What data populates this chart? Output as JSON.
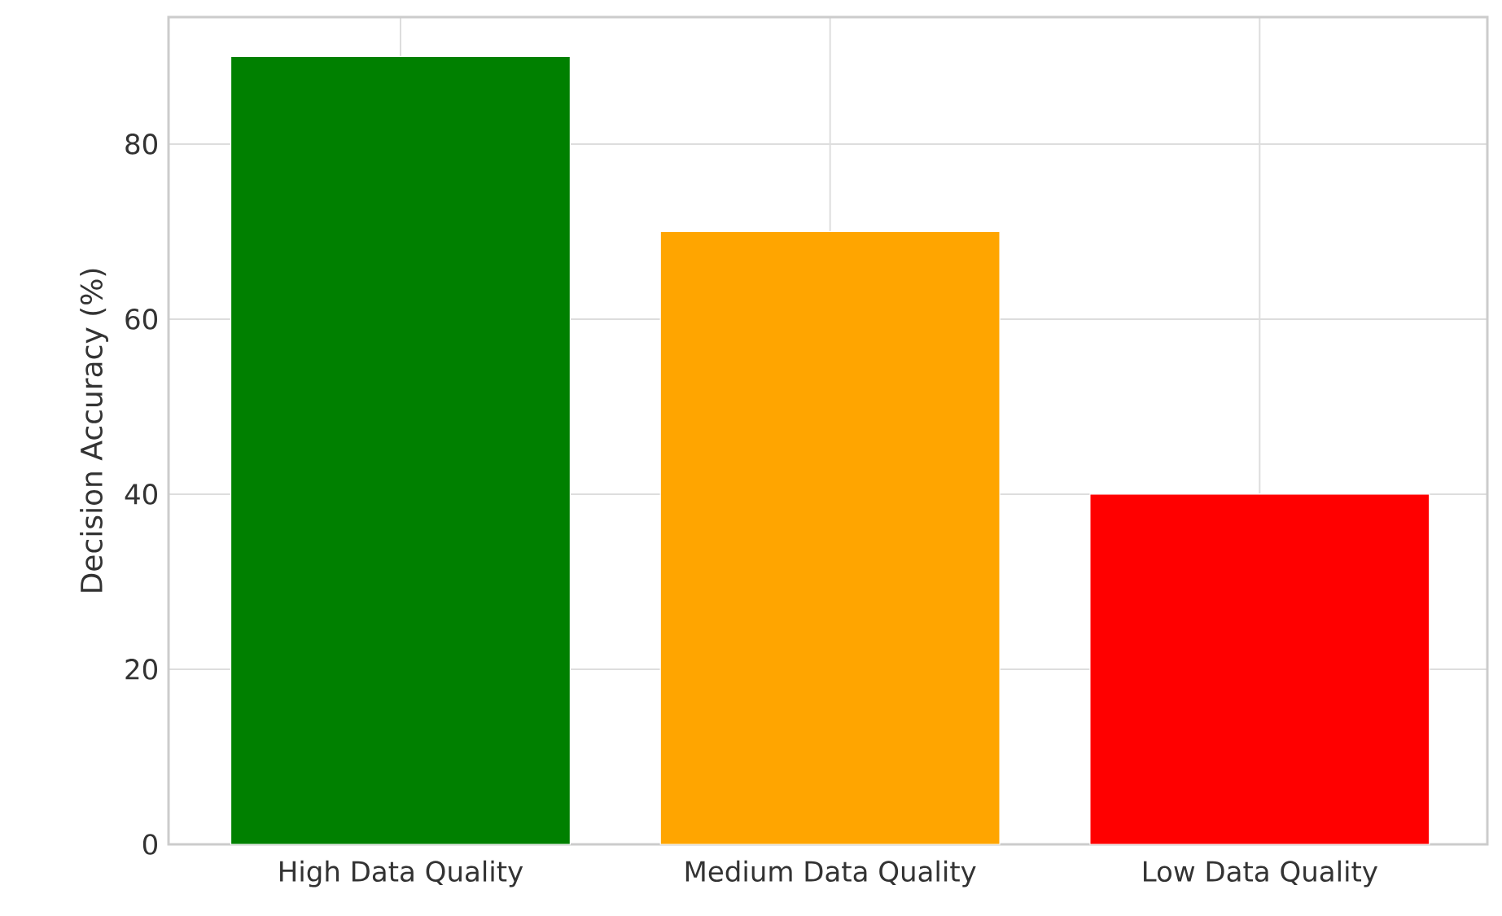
{
  "chart_data": {
    "type": "bar",
    "ylabel": "Decision Accuracy (%)",
    "categories": [
      "High Data Quality",
      "Medium Data Quality",
      "Low Data Quality"
    ],
    "values": [
      90,
      70,
      40
    ],
    "colors": [
      "#008000",
      "#ffa500",
      "#ff0000"
    ],
    "ylim": [
      0,
      94.5
    ],
    "yticks": [
      0,
      20,
      40,
      60,
      80
    ],
    "grid": true
  }
}
